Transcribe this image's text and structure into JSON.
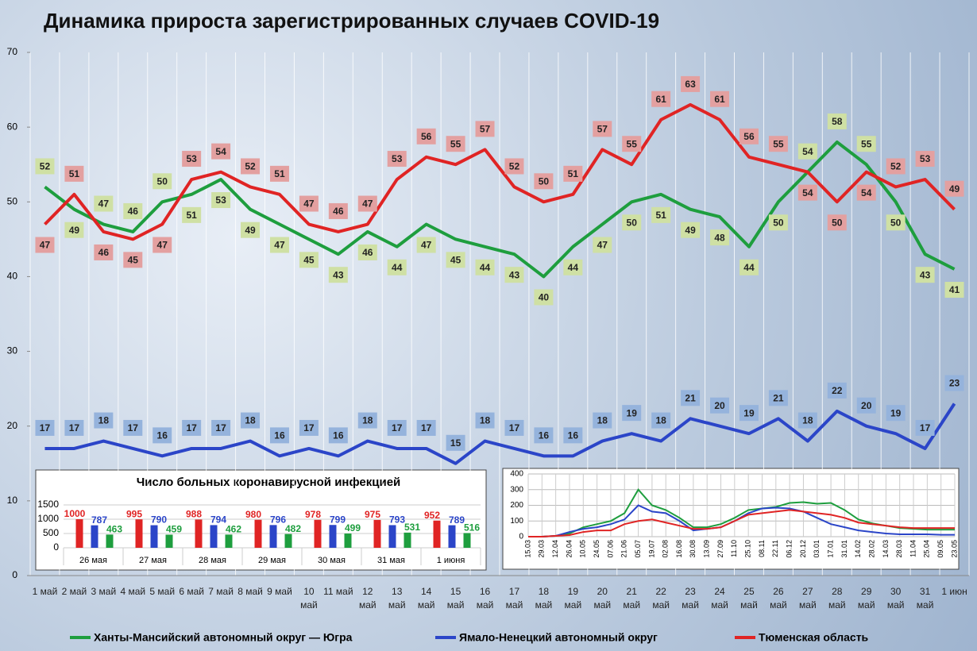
{
  "chart_data": [
    {
      "type": "line",
      "title": "Динамика прироста зарегистрированных случаев COVID-19",
      "categories": [
        "1 май",
        "2 май",
        "3 май",
        "4 май",
        "5 май",
        "6 май",
        "7 май",
        "8 май",
        "9 май",
        "10 май",
        "11 май",
        "12 май",
        "13 май",
        "14 май",
        "15 май",
        "16 май",
        "17 май",
        "18 май",
        "19 май",
        "20 май",
        "21 май",
        "22 май",
        "23 май",
        "24 май",
        "25 май",
        "26 май",
        "27 май",
        "28 май",
        "29 май",
        "30 май",
        "31 май",
        "1 июн"
      ],
      "series": [
        {
          "name": "Ханты-Мансийский автономный округ — Югра",
          "color": "#1e9e3e",
          "label_color": "#cfe0a4",
          "values": [
            52,
            49,
            47,
            46,
            50,
            51,
            53,
            49,
            47,
            45,
            43,
            46,
            44,
            47,
            45,
            44,
            43,
            40,
            44,
            47,
            50,
            51,
            49,
            48,
            44,
            50,
            54,
            58,
            55,
            50,
            43,
            41
          ]
        },
        {
          "name": "Ямало-Ненецкий автономный округ",
          "color": "#2b45c8",
          "label_color": "#95b3dc",
          "values": [
            17,
            17,
            18,
            17,
            16,
            17,
            17,
            18,
            16,
            17,
            16,
            18,
            17,
            17,
            15,
            18,
            17,
            16,
            16,
            18,
            19,
            18,
            21,
            20,
            19,
            21,
            18,
            22,
            20,
            19,
            17,
            23
          ]
        },
        {
          "name": "Тюменская область",
          "color": "#e02424",
          "label_color": "#e3a0a0",
          "values": [
            47,
            51,
            46,
            45,
            47,
            53,
            54,
            52,
            51,
            47,
            46,
            47,
            53,
            56,
            55,
            57,
            52,
            50,
            51,
            57,
            55,
            61,
            63,
            61,
            56,
            55,
            54,
            50,
            54,
            52,
            53,
            49
          ]
        }
      ],
      "ylim": [
        0,
        70
      ],
      "yticks": [
        0,
        10,
        20,
        30,
        40,
        50,
        60,
        70
      ],
      "grid": true
    },
    {
      "type": "bar",
      "title": "Число больных коронавирусной инфекцией",
      "categories": [
        "26 мая",
        "27 мая",
        "28 мая",
        "29 мая",
        "30 мая",
        "31 мая",
        "1 июня"
      ],
      "series": [
        {
          "color": "#e02424",
          "values": [
            1000,
            995,
            988,
            980,
            978,
            975,
            952
          ]
        },
        {
          "color": "#2b45c8",
          "values": [
            787,
            790,
            794,
            796,
            799,
            793,
            789
          ]
        },
        {
          "color": "#1e9e3e",
          "values": [
            463,
            459,
            462,
            482,
            499,
            531,
            516
          ]
        }
      ],
      "ylim": [
        0,
        1500
      ],
      "yticks": [
        0,
        500,
        1000,
        1500
      ],
      "grid": true
    },
    {
      "type": "line",
      "categories": [
        "15.03",
        "29.03",
        "12.04",
        "26.04",
        "10.05",
        "24.05",
        "07.06",
        "21.06",
        "05.07",
        "19.07",
        "02.08",
        "16.08",
        "30.08",
        "13.09",
        "27.09",
        "11.10",
        "25.10",
        "08.11",
        "22.11",
        "06.12",
        "20.12",
        "03.01",
        "17.01",
        "31.01",
        "14.02",
        "28.02",
        "14.03",
        "28.03",
        "11.04",
        "25.04",
        "09.05",
        "23.05"
      ],
      "series": [
        {
          "color": "#1e9e3e",
          "values": [
            0,
            0,
            5,
            20,
            60,
            80,
            100,
            150,
            300,
            200,
            170,
            120,
            60,
            60,
            80,
            120,
            170,
            180,
            190,
            215,
            220,
            210,
            215,
            170,
            110,
            85,
            70,
            55,
            50,
            45,
            45,
            45
          ]
        },
        {
          "color": "#2b45c8",
          "values": [
            0,
            0,
            5,
            30,
            50,
            60,
            80,
            110,
            200,
            160,
            150,
            100,
            40,
            50,
            60,
            100,
            150,
            180,
            185,
            180,
            160,
            120,
            80,
            60,
            40,
            30,
            20,
            15,
            15,
            15,
            12,
            12
          ]
        },
        {
          "color": "#e02424",
          "values": [
            0,
            0,
            5,
            10,
            30,
            40,
            40,
            80,
            100,
            110,
            90,
            70,
            50,
            50,
            60,
            100,
            140,
            150,
            160,
            170,
            160,
            150,
            140,
            120,
            90,
            80,
            70,
            60,
            55,
            55,
            55,
            55
          ]
        }
      ],
      "ylim": [
        0,
        400
      ],
      "yticks": [
        0,
        100,
        200,
        300,
        400
      ],
      "grid": true
    }
  ]
}
